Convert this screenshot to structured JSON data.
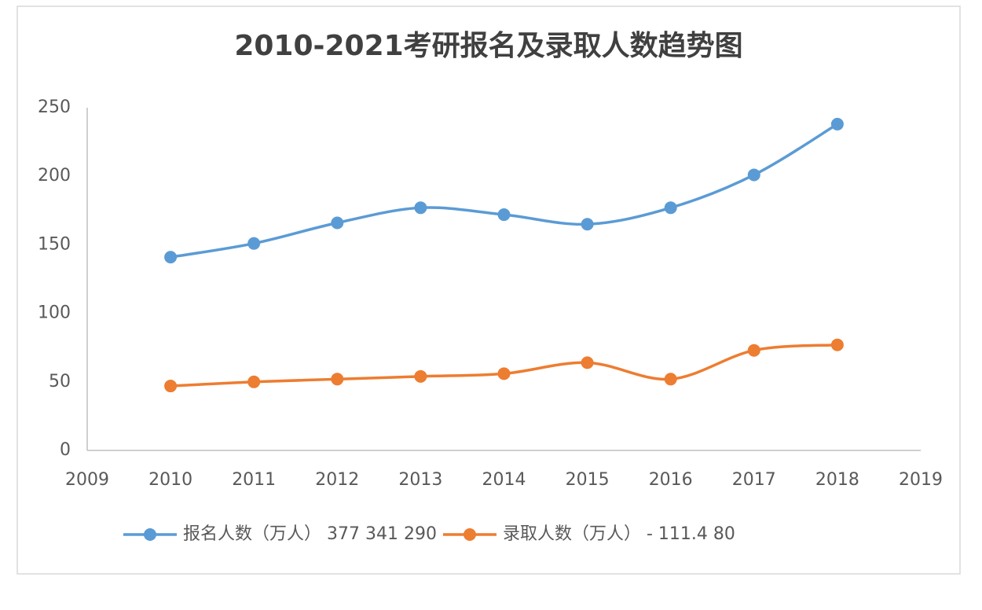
{
  "chart_data": {
    "type": "line",
    "title": "2010-2021考研报名及录取人数趋势图",
    "x": [
      2010,
      2011,
      2012,
      2013,
      2014,
      2015,
      2016,
      2017,
      2018
    ],
    "series": [
      {
        "name": "报名人数（万人） 377 341 290",
        "color": "#5b9bd5",
        "values": [
          141,
          151,
          166,
          177,
          172,
          165,
          177,
          201,
          238
        ]
      },
      {
        "name": "录取人数（万人） - 111.4 80",
        "color": "#ed7d31",
        "values": [
          47,
          50,
          52,
          54,
          56,
          64,
          52,
          73,
          77
        ]
      }
    ],
    "xlim": [
      2009,
      2019
    ],
    "xticks": [
      2009,
      2010,
      2011,
      2012,
      2013,
      2014,
      2015,
      2016,
      2017,
      2018,
      2019
    ],
    "ylim": [
      0,
      250
    ],
    "yticks": [
      0,
      50,
      100,
      150,
      200,
      250
    ],
    "grid": false,
    "legend": "bottom"
  }
}
